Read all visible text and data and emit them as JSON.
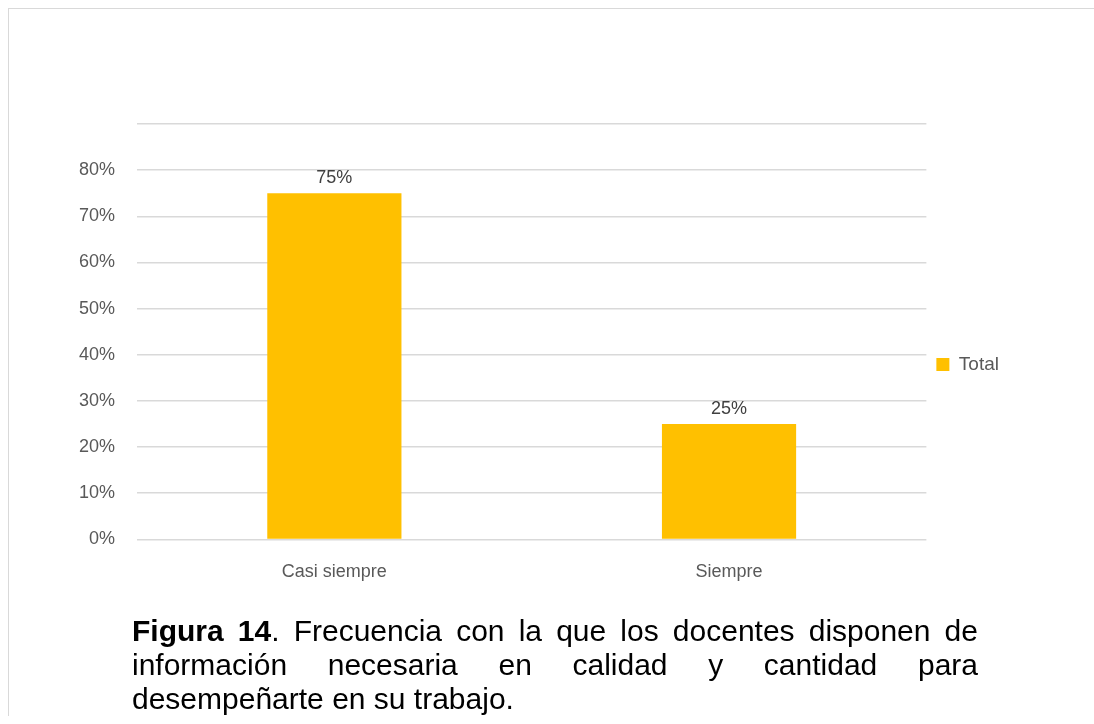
{
  "chart_data": {
    "type": "bar",
    "title": "Figura 14. Frecuencia con la que los docentes disponen de información necesaria en calidad y cantidad para desempeñarte en su trabajo.",
    "categories": [
      "Casi siempre",
      "Siempre"
    ],
    "series": [
      {
        "name": "Total",
        "color": "#ffc000",
        "values": [
          75,
          25
        ],
        "value_labels": [
          "75%",
          "25%"
        ]
      }
    ],
    "ylim": [
      0,
      90
    ],
    "yticks": [
      {
        "value": 0,
        "label": "0%"
      },
      {
        "value": 10,
        "label": "10%"
      },
      {
        "value": 20,
        "label": "20%"
      },
      {
        "value": 30,
        "label": "30%"
      },
      {
        "value": 40,
        "label": "40%"
      },
      {
        "value": 50,
        "label": "50%"
      },
      {
        "value": 60,
        "label": "60%"
      },
      {
        "value": 70,
        "label": "70%"
      },
      {
        "value": 80,
        "label": "80%"
      },
      {
        "value": 90,
        "label": null
      }
    ],
    "grid": "y",
    "legend": "right"
  }
}
